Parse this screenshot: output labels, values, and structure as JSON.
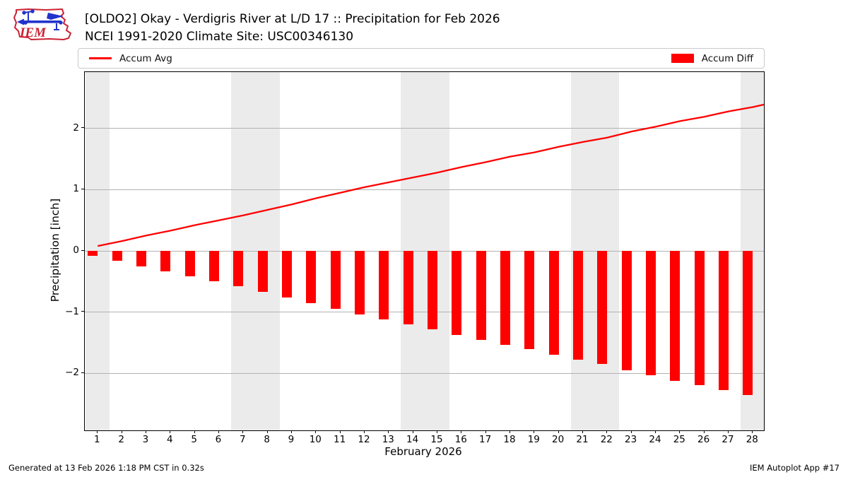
{
  "header": {
    "title_line1": "[OLDO2] Okay - Verdigris River at L/D 17 :: Precipitation for Feb 2026",
    "title_line2": "NCEI 1991-2020 Climate Site: USC00346130",
    "logo_text": "IEM"
  },
  "legend": {
    "avg_label": "Accum Avg",
    "diff_label": "Accum Diff"
  },
  "footer": {
    "left": "Generated at 13 Feb 2026 1:18 PM CST in 0.32s",
    "right": "IEM Autoplot App #17"
  },
  "colors": {
    "accum": "#ff0000",
    "weekend_band": "#ebebeb",
    "gridline": "#b2b2b2",
    "logo_red": "#cc2233",
    "logo_blue": "#2233cc"
  },
  "chart_data": {
    "type": "bar",
    "title": "[OLDO2] Okay - Verdigris River at L/D 17 :: Precipitation for Feb 2026",
    "subtitle": "NCEI 1991-2020 Climate Site: USC00346130",
    "xlabel": "February 2026",
    "ylabel": "Precipitation [inch]",
    "x": [
      1,
      2,
      3,
      4,
      5,
      6,
      7,
      8,
      9,
      10,
      11,
      12,
      13,
      14,
      15,
      16,
      17,
      18,
      19,
      20,
      21,
      22,
      23,
      24,
      25,
      26,
      27,
      28
    ],
    "xtick_labels": [
      "1",
      "2",
      "3",
      "4",
      "5",
      "6",
      "7",
      "8",
      "9",
      "10",
      "11",
      "12",
      "13",
      "14",
      "15",
      "16",
      "17",
      "18",
      "19",
      "20",
      "21",
      "22",
      "23",
      "24",
      "25",
      "26",
      "27",
      "28"
    ],
    "series": [
      {
        "name": "Accum Avg",
        "type": "line",
        "color": "#ff0000",
        "values": [
          0.08,
          0.16,
          0.25,
          0.33,
          0.42,
          0.5,
          0.58,
          0.67,
          0.76,
          0.86,
          0.95,
          1.04,
          1.12,
          1.2,
          1.28,
          1.37,
          1.45,
          1.54,
          1.61,
          1.7,
          1.78,
          1.85,
          1.95,
          2.03,
          2.12,
          2.19,
          2.28,
          2.35
        ]
      },
      {
        "name": "Accum Diff",
        "type": "bar",
        "color": "#ff0000",
        "values": [
          -0.08,
          -0.16,
          -0.25,
          -0.33,
          -0.42,
          -0.5,
          -0.58,
          -0.67,
          -0.76,
          -0.86,
          -0.95,
          -1.04,
          -1.12,
          -1.2,
          -1.28,
          -1.37,
          -1.45,
          -1.54,
          -1.61,
          -1.7,
          -1.78,
          -1.85,
          -1.95,
          -2.03,
          -2.12,
          -2.19,
          -2.28,
          -2.35
        ]
      }
    ],
    "line_edge_value": 2.39,
    "ylim": [
      -2.93,
      2.92
    ],
    "yticks": [
      2,
      1,
      0,
      -1,
      -2
    ],
    "ytick_labels": [
      "2",
      "1",
      "0",
      "−1",
      "−2"
    ],
    "weekend_bands": [
      [
        1,
        1
      ],
      [
        7,
        8
      ],
      [
        14,
        15
      ],
      [
        21,
        22
      ],
      [
        28,
        28
      ]
    ],
    "grid": true,
    "legend_position": "top"
  }
}
